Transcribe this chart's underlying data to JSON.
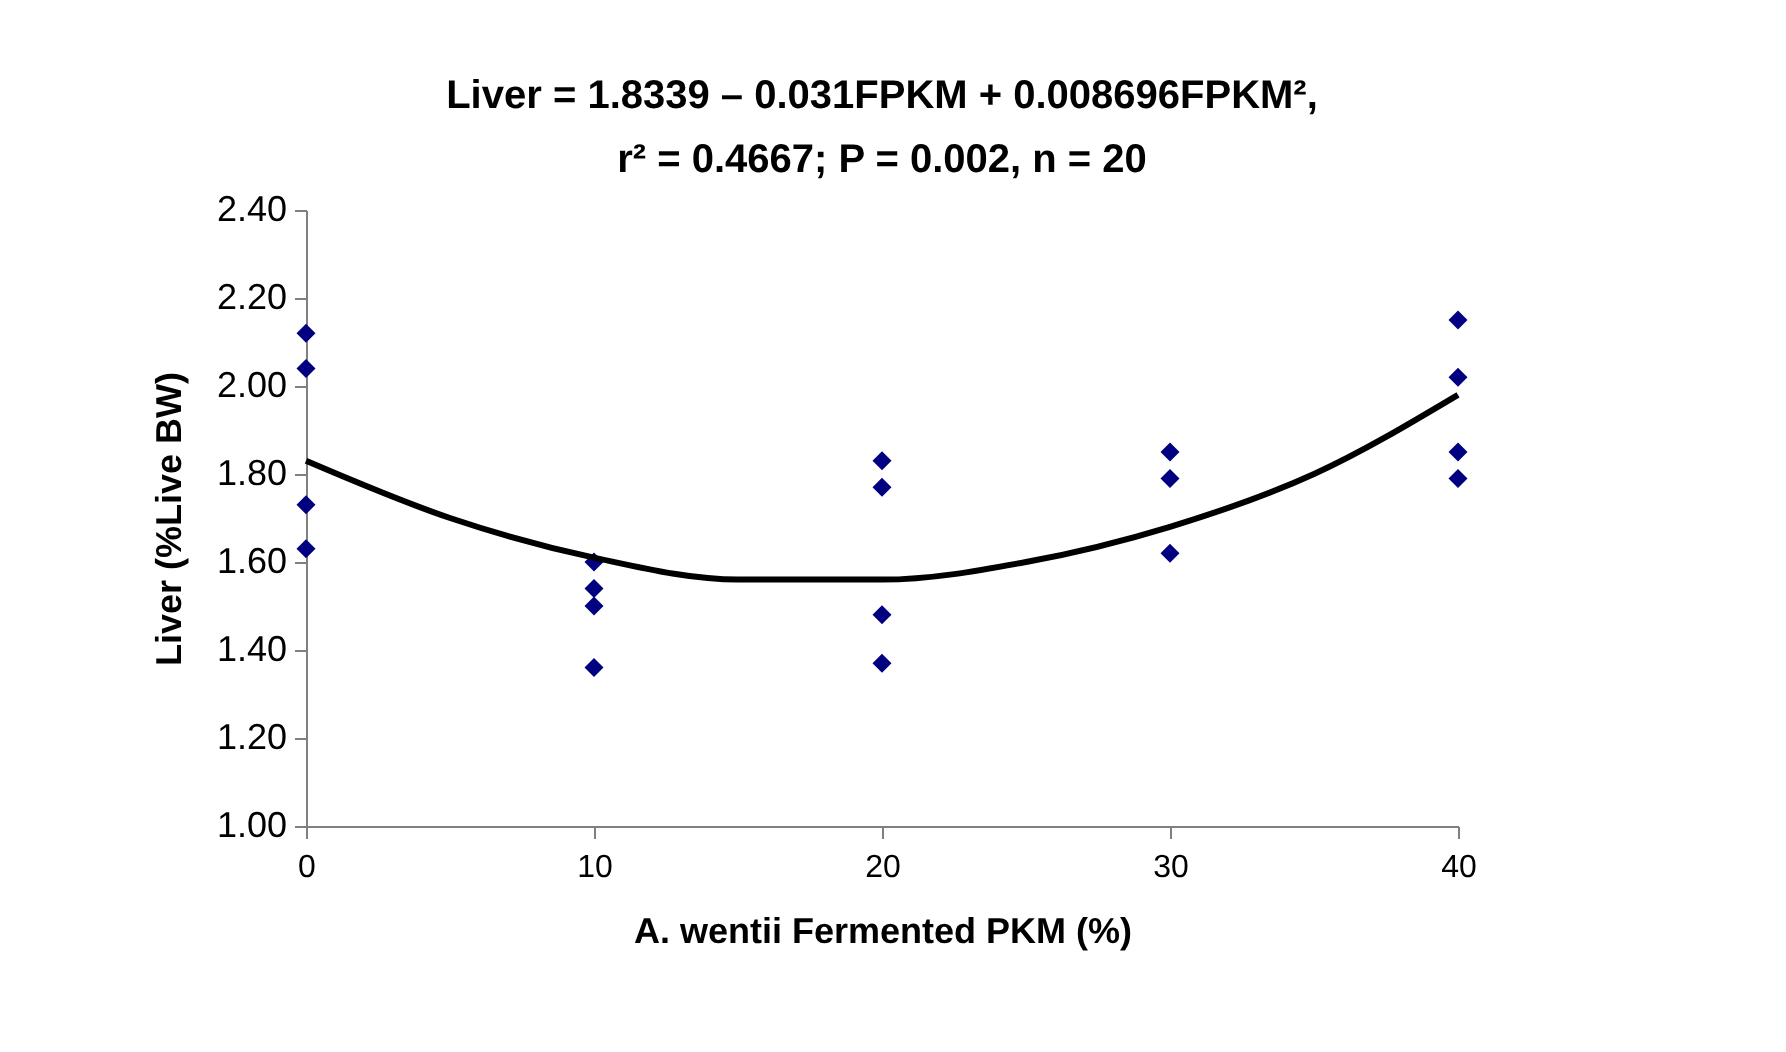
{
  "chart_data": {
    "type": "scatter",
    "title": "Liver = 1.8339 – 0.031FPKM + 0.008696FPKM²,",
    "subtitle": "r² = 0.4667; P = 0.002, n = 20",
    "xlabel": "A. wentii Fermented PKM (%)",
    "ylabel": "Liver (%Live BW)",
    "xlim": [
      0,
      40
    ],
    "xticks": [
      0,
      10,
      20,
      30,
      40
    ],
    "ylim": [
      1.0,
      2.4
    ],
    "yticks": [
      {
        "value": 1.0,
        "label": "1.00"
      },
      {
        "value": 1.2,
        "label": "1.20"
      },
      {
        "value": 1.4,
        "label": "1.40"
      },
      {
        "value": 1.6,
        "label": "1.60"
      },
      {
        "value": 1.8,
        "label": "1.80"
      },
      {
        "value": 2.0,
        "label": "2.00"
      },
      {
        "value": 2.2,
        "label": "2.20"
      },
      {
        "value": 2.4,
        "label": "2.40"
      }
    ],
    "grid": false,
    "marker": "diamond",
    "series": [
      {
        "color": "#000080",
        "x": [
          0,
          0,
          0,
          0,
          10,
          10,
          10,
          10,
          20,
          20,
          20,
          20,
          30,
          30,
          30,
          40,
          40,
          40,
          40
        ],
        "values": [
          2.12,
          2.04,
          1.73,
          1.63,
          1.6,
          1.54,
          1.5,
          1.36,
          1.83,
          1.77,
          1.48,
          1.37,
          1.85,
          1.79,
          1.62,
          2.15,
          2.02,
          1.85,
          1.79
        ]
      },
      {
        "type": "line",
        "color": "#000000",
        "line_style": "solid",
        "marker": "none",
        "x": [
          0,
          5,
          10,
          15,
          20,
          25,
          30,
          35,
          40
        ],
        "values": [
          1.83,
          1.7,
          1.61,
          1.56,
          1.56,
          1.6,
          1.68,
          1.8,
          1.98
        ]
      }
    ]
  }
}
